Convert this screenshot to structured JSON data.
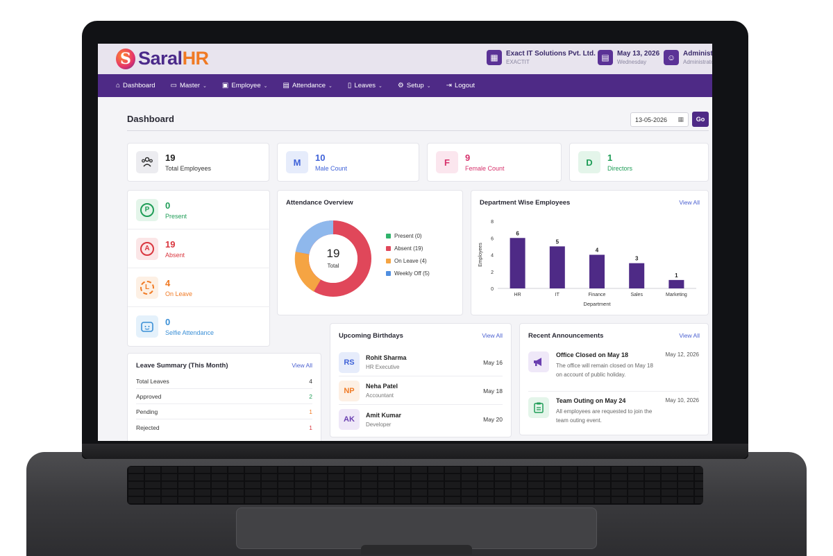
{
  "brand": {
    "name_main": "Saral",
    "name_accent": "HR",
    "logo_letter": "S"
  },
  "header": {
    "company": {
      "name": "Exact IT Solutions Pvt. Ltd.",
      "code": "EXACTIT"
    },
    "date": {
      "value": "May 13, 2026",
      "weekday": "Wednesday"
    },
    "user": {
      "name": "Administrator",
      "role": "Administrator"
    }
  },
  "nav": [
    {
      "label": "Dashboard",
      "icon": "home-icon",
      "caret": false
    },
    {
      "label": "Master",
      "icon": "folder-icon",
      "caret": true
    },
    {
      "label": "Employee",
      "icon": "id-card-icon",
      "caret": true
    },
    {
      "label": "Attendance",
      "icon": "calendar-icon",
      "caret": true
    },
    {
      "label": "Leaves",
      "icon": "document-icon",
      "caret": true
    },
    {
      "label": "Setup",
      "icon": "gear-icon",
      "caret": true
    },
    {
      "label": "Logout",
      "icon": "logout-icon",
      "caret": false
    }
  ],
  "page": {
    "title": "Dashboard",
    "date_filter": "13-05-2026",
    "go_label": "Go"
  },
  "stats": [
    {
      "value": "19",
      "label": "Total Employees",
      "badge": "",
      "color": "#222222",
      "bg": "#ececf0"
    },
    {
      "value": "10",
      "label": "Male Count",
      "badge": "M",
      "color": "#3f62d8",
      "bg": "#e6ecfb"
    },
    {
      "value": "9",
      "label": "Female Count",
      "badge": "F",
      "color": "#d6316b",
      "bg": "#fbe6ee"
    },
    {
      "value": "1",
      "label": "Directors",
      "badge": "D",
      "color": "#1f9d57",
      "bg": "#e4f5ea"
    }
  ],
  "status": [
    {
      "value": "0",
      "label": "Present",
      "badge": "P",
      "color": "#1f9d57",
      "bg": "#e4f5ea"
    },
    {
      "value": "19",
      "label": "Absent",
      "badge": "A",
      "color": "#d9363e",
      "bg": "#fbe6e7"
    },
    {
      "value": "4",
      "label": "On Leave",
      "badge": "L",
      "color": "#f07a24",
      "bg": "#fdf0e4"
    },
    {
      "value": "0",
      "label": "Selfie Attendance",
      "badge": "",
      "color": "#3a8fd6",
      "bg": "#e4f1fb"
    }
  ],
  "attendance_overview": {
    "title": "Attendance Overview",
    "center_value": "19",
    "center_label": "Total",
    "legend": [
      {
        "label": "Present (0)",
        "color": "#2fb36b"
      },
      {
        "label": "Absent (19)",
        "color": "#e0475a"
      },
      {
        "label": "On Leave (4)",
        "color": "#f5a443"
      },
      {
        "label": "Weekly Off (5)",
        "color": "#4f8ee0"
      }
    ]
  },
  "department": {
    "title": "Department Wise Employees",
    "view_all": "View All"
  },
  "chart_data": {
    "type": "bar",
    "categories": [
      "HR",
      "IT",
      "Finance",
      "Sales",
      "Marketing"
    ],
    "values": [
      6,
      5,
      4,
      3,
      1
    ],
    "title": "Department Wise Employees",
    "xlabel": "Department",
    "ylabel": "Employees",
    "ylim": [
      0,
      8
    ],
    "yticks": [
      0,
      2,
      4,
      6,
      8
    ],
    "color": "#4e2a86",
    "grid": false
  },
  "leave_summary": {
    "title": "Leave Summary (This Month)",
    "view_all": "View All",
    "rows": [
      {
        "label": "Total Leaves",
        "value": "4",
        "color": "#333333"
      },
      {
        "label": "Approved",
        "value": "2",
        "color": "#1f9d57"
      },
      {
        "label": "Pending",
        "value": "1",
        "color": "#f07a24"
      },
      {
        "label": "Rejected",
        "value": "1",
        "color": "#d9363e"
      }
    ]
  },
  "birthdays": {
    "title": "Upcoming Birthdays",
    "view_all": "View All",
    "items": [
      {
        "initials": "RS",
        "name": "Rohit Sharma",
        "role": "HR Executive",
        "date": "May 16",
        "color": "#3f62d8",
        "bg": "#e6ecfb"
      },
      {
        "initials": "NP",
        "name": "Neha Patel",
        "role": "Accountant",
        "date": "May 18",
        "color": "#f07a24",
        "bg": "#fdf0e4"
      },
      {
        "initials": "AK",
        "name": "Amit Kumar",
        "role": "Developer",
        "date": "May 20",
        "color": "#6a3fb0",
        "bg": "#efe8f8"
      }
    ]
  },
  "announcements": {
    "title": "Recent Announcements",
    "view_all": "View All",
    "items": [
      {
        "title": "Office Closed on May 18",
        "body": "The office will remain closed on May 18 on account of public holiday.",
        "date": "May 12, 2026",
        "icon": "megaphone-icon",
        "color": "#6a3fb0",
        "bg": "#efe8f8"
      },
      {
        "title": "Team Outing on May 24",
        "body": "All employees are requested to join the team outing event.",
        "date": "May 10, 2026",
        "icon": "clipboard-icon",
        "color": "#1f9d57",
        "bg": "#e4f5ea"
      }
    ]
  }
}
